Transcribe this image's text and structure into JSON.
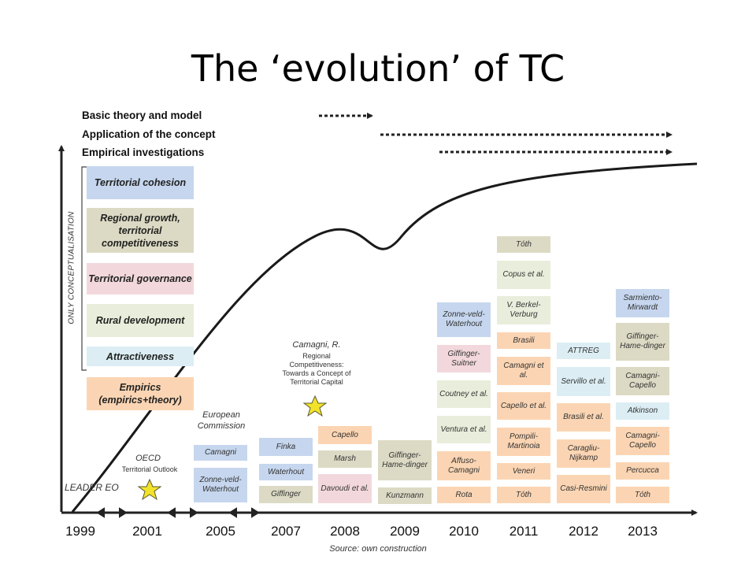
{
  "title": "The ‘evolution’ of TC",
  "legend": {
    "basic": "Basic theory and model",
    "application": "Application of the concept",
    "empirical": "Empirical investigations"
  },
  "vertical_label": "ONLY CONCEPTUALISATION",
  "categories": [
    "Territorial cohesion",
    "Regional growth, territorial competitiveness",
    "Territorial governance",
    "Rural development",
    "Attractiveness",
    "Empirics (empirics+theory)"
  ],
  "years": [
    "1999",
    "2001",
    "2005",
    "2007",
    "2008",
    "2009",
    "2010",
    "2011",
    "2012",
    "2013"
  ],
  "annotations": {
    "leader": "LEADER EO",
    "oecd_title": "OECD",
    "oecd_sub": "Territorial Outlook",
    "ec_title": "European Commission",
    "camagni_title": "Camagni, R.",
    "camagni_sub": "Regional Competitiveness: Towards a Concept of Territorial Capital"
  },
  "pubs": {
    "y2005": [
      "Camagni",
      "Zonne-veld-Waterhout"
    ],
    "y2007": [
      "Finka",
      "Waterhout",
      "Giffinger"
    ],
    "y2008": [
      "Capello",
      "Marsh",
      "Davoudi et al."
    ],
    "y2009": [
      "Giffinger-Hame-dinger",
      "Kunzmann"
    ],
    "y2010": [
      "Zonne-veld-Waterhout",
      "Giffinger-Suitner",
      "Coutney et al.",
      "Ventura et al.",
      "Affuso-Camagni",
      "Rota"
    ],
    "y2011": [
      "Tóth",
      "Copus et al.",
      "V. Berkel-Verburg",
      "Brasili",
      "Camagni et al.",
      "Capello et al.",
      "Pompili-Martinoia",
      "Veneri",
      "Tóth"
    ],
    "y2012": [
      "ATTREG",
      "Servillo et al.",
      "Brasili et al.",
      "Caragliu-Nijkamp",
      "Casi-Resmini"
    ],
    "y2013": [
      "Sarmiento-Mirwardt",
      "Giffinger-Hame-dinger",
      "Camagni-Capello",
      "Atkinson",
      "Camagni-Capello",
      "Percucca",
      "Tóth"
    ]
  },
  "source": "Source: own construction",
  "colors": {
    "blue": "#c6d6ee",
    "tan": "#dcdac4",
    "pink": "#f2d8dc",
    "green": "#e8eedb",
    "light_blue": "#dceef4",
    "orange": "#fbd5b3",
    "star": "#f2e32a"
  }
}
